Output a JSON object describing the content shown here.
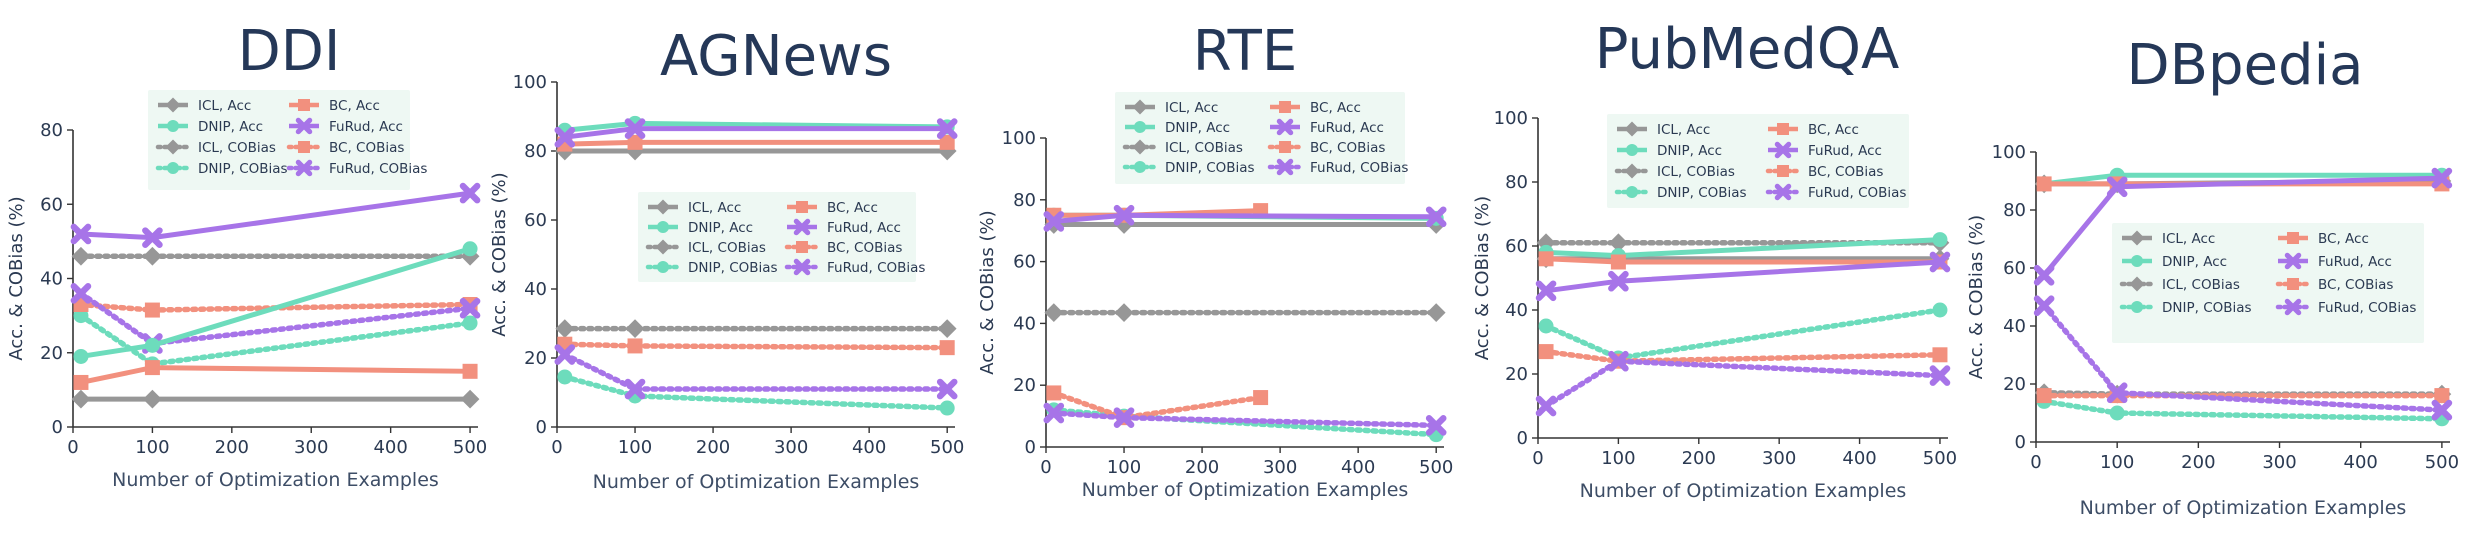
{
  "colors": {
    "icl": "#979797",
    "dnip": "#6ddcbc",
    "bc": "#f2907e",
    "furud": "#a774e8",
    "legend_bg": "#eef8f3",
    "title": "#253858"
  },
  "chart_data": [
    {
      "type": "line",
      "title": "DDI",
      "xlabel": "Number of Optimization Examples",
      "ylabel": "Acc. & COBias (%)",
      "xlim": [
        0,
        510
      ],
      "ylim": [
        0,
        80
      ],
      "xticks": [
        0,
        100,
        200,
        300,
        400,
        500
      ],
      "xtick_labels": [
        "0",
        "100",
        "200",
        "300",
        "400",
        "500"
      ],
      "yticks": [
        0,
        20,
        40,
        60,
        80
      ],
      "ytick_labels": [
        "0",
        "20",
        "40",
        "60",
        "80"
      ],
      "legend_position": "top-center",
      "legend": [
        "ICL, Acc",
        "BC, Acc",
        "DNIP, Acc",
        "FuRud, Acc",
        "ICL, COBias",
        "BC, COBias",
        "DNIP, COBias",
        "FuRud, COBias"
      ],
      "series": [
        {
          "name": "ICL, Acc",
          "color_key": "icl",
          "dash": false,
          "marker": "diamond",
          "x": [
            10,
            100,
            500
          ],
          "y": [
            7.5,
            7.5,
            7.5
          ]
        },
        {
          "name": "DNIP, Acc",
          "color_key": "dnip",
          "dash": false,
          "marker": "circle",
          "x": [
            10,
            100,
            500
          ],
          "y": [
            19,
            22,
            48
          ]
        },
        {
          "name": "BC, Acc",
          "color_key": "bc",
          "dash": false,
          "marker": "square",
          "x": [
            10,
            100,
            500
          ],
          "y": [
            12,
            16,
            15
          ]
        },
        {
          "name": "FuRud, Acc",
          "color_key": "furud",
          "dash": false,
          "marker": "x",
          "x": [
            10,
            100,
            500
          ],
          "y": [
            52,
            51,
            63
          ]
        },
        {
          "name": "ICL, COBias",
          "color_key": "icl",
          "dash": true,
          "marker": "diamond",
          "x": [
            10,
            100,
            500
          ],
          "y": [
            46,
            46,
            46
          ]
        },
        {
          "name": "DNIP, COBias",
          "color_key": "dnip",
          "dash": true,
          "marker": "circle",
          "x": [
            10,
            100,
            500
          ],
          "y": [
            30,
            17,
            28
          ]
        },
        {
          "name": "BC, COBias",
          "color_key": "bc",
          "dash": true,
          "marker": "square",
          "x": [
            10,
            100,
            500
          ],
          "y": [
            33,
            31.5,
            33
          ]
        },
        {
          "name": "FuRud, COBias",
          "color_key": "furud",
          "dash": true,
          "marker": "x",
          "x": [
            10,
            100,
            500
          ],
          "y": [
            36,
            22.5,
            32
          ]
        }
      ]
    },
    {
      "type": "line",
      "title": "AGNews",
      "xlabel": "Number of Optimization Examples",
      "ylabel": "Acc. & COBias (%)",
      "xlim": [
        0,
        510
      ],
      "ylim": [
        0,
        100
      ],
      "xticks": [
        0,
        100,
        200,
        300,
        400,
        500
      ],
      "xtick_labels": [
        "0",
        "100",
        "200",
        "300",
        "400",
        "500"
      ],
      "yticks": [
        0,
        20,
        40,
        60,
        80,
        100
      ],
      "ytick_labels": [
        "0",
        "20",
        "40",
        "60",
        "80",
        "100"
      ],
      "legend_position": "center",
      "legend": [
        "ICL, Acc",
        "BC, Acc",
        "DNIP, Acc",
        "FuRud, Acc",
        "ICL, COBias",
        "BC, COBias",
        "DNIP, COBias",
        "FuRud, COBias"
      ],
      "series": [
        {
          "name": "ICL, Acc",
          "color_key": "icl",
          "dash": false,
          "marker": "diamond",
          "x": [
            10,
            100,
            500
          ],
          "y": [
            80,
            80,
            80
          ]
        },
        {
          "name": "DNIP, Acc",
          "color_key": "dnip",
          "dash": false,
          "marker": "circle",
          "x": [
            10,
            100,
            500
          ],
          "y": [
            86,
            88,
            87
          ]
        },
        {
          "name": "BC, Acc",
          "color_key": "bc",
          "dash": false,
          "marker": "square",
          "x": [
            10,
            100,
            500
          ],
          "y": [
            82,
            82.5,
            82.5
          ]
        },
        {
          "name": "FuRud, Acc",
          "color_key": "furud",
          "dash": false,
          "marker": "x",
          "x": [
            10,
            100,
            500
          ],
          "y": [
            84,
            86.5,
            86.5
          ]
        },
        {
          "name": "ICL, COBias",
          "color_key": "icl",
          "dash": true,
          "marker": "diamond",
          "x": [
            10,
            100,
            500
          ],
          "y": [
            28.5,
            28.5,
            28.5
          ]
        },
        {
          "name": "DNIP, COBias",
          "color_key": "dnip",
          "dash": true,
          "marker": "circle",
          "x": [
            10,
            100,
            500
          ],
          "y": [
            14.5,
            9,
            5.5
          ]
        },
        {
          "name": "BC, COBias",
          "color_key": "bc",
          "dash": true,
          "marker": "square",
          "x": [
            10,
            100,
            500
          ],
          "y": [
            24,
            23.5,
            23
          ]
        },
        {
          "name": "FuRud, COBias",
          "color_key": "furud",
          "dash": true,
          "marker": "x",
          "x": [
            10,
            100,
            500
          ],
          "y": [
            21,
            11,
            11
          ]
        }
      ]
    },
    {
      "type": "line",
      "title": "RTE",
      "xlabel": "Number of Optimization Examples",
      "ylabel": "Acc. & COBias (%)",
      "xlim": [
        0,
        510
      ],
      "ylim": [
        0,
        100
      ],
      "xticks": [
        0,
        100,
        200,
        300,
        400,
        500
      ],
      "xtick_labels": [
        "0",
        "100",
        "200",
        "300",
        "400",
        "500"
      ],
      "yticks": [
        0,
        20,
        40,
        60,
        80,
        100
      ],
      "ytick_labels": [
        "0",
        "20",
        "40",
        "60",
        "80",
        "100"
      ],
      "legend_position": "top-center",
      "legend": [
        "ICL, Acc",
        "BC, Acc",
        "DNIP, Acc",
        "FuRud, Acc",
        "ICL, COBias",
        "BC, COBias",
        "DNIP, COBias",
        "FuRud, COBias"
      ],
      "series": [
        {
          "name": "ICL, Acc",
          "color_key": "icl",
          "dash": false,
          "marker": "diamond",
          "x": [
            10,
            100,
            500
          ],
          "y": [
            72,
            72,
            72
          ]
        },
        {
          "name": "DNIP, Acc",
          "color_key": "dnip",
          "dash": false,
          "marker": "circle",
          "x": [
            10,
            100,
            500
          ],
          "y": [
            75,
            75,
            74
          ]
        },
        {
          "name": "BC, Acc",
          "color_key": "bc",
          "dash": false,
          "marker": "square",
          "x": [
            10,
            100,
            275
          ],
          "y": [
            75,
            75,
            76.5
          ]
        },
        {
          "name": "FuRud, Acc",
          "color_key": "furud",
          "dash": false,
          "marker": "x",
          "x": [
            10,
            100,
            500
          ],
          "y": [
            73,
            75,
            74.5
          ]
        },
        {
          "name": "ICL, COBias",
          "color_key": "icl",
          "dash": true,
          "marker": "diamond",
          "x": [
            10,
            100,
            500
          ],
          "y": [
            43.5,
            43.5,
            43.5
          ]
        },
        {
          "name": "DNIP, COBias",
          "color_key": "dnip",
          "dash": true,
          "marker": "circle",
          "x": [
            10,
            100,
            500
          ],
          "y": [
            12,
            10,
            4
          ]
        },
        {
          "name": "BC, COBias",
          "color_key": "bc",
          "dash": true,
          "marker": "square",
          "x": [
            10,
            100,
            275
          ],
          "y": [
            17.5,
            9.5,
            16
          ]
        },
        {
          "name": "FuRud, COBias",
          "color_key": "furud",
          "dash": true,
          "marker": "x",
          "x": [
            10,
            100,
            500
          ],
          "y": [
            11,
            9.5,
            7
          ]
        }
      ]
    },
    {
      "type": "line",
      "title": "PubMedQA",
      "xlabel": "Number of Optimization Examples",
      "ylabel": "Acc. & COBias (%)",
      "xlim": [
        0,
        510
      ],
      "ylim": [
        0,
        100
      ],
      "xticks": [
        0,
        100,
        200,
        300,
        400,
        500
      ],
      "xtick_labels": [
        "0",
        "100",
        "200",
        "300",
        "400",
        "500"
      ],
      "yticks": [
        0,
        20,
        40,
        60,
        80,
        100
      ],
      "ytick_labels": [
        "0",
        "20",
        "40",
        "60",
        "80",
        "100"
      ],
      "legend_position": "top-center",
      "legend": [
        "ICL, Acc",
        "BC, Acc",
        "DNIP, Acc",
        "FuRud, Acc",
        "ICL, COBias",
        "BC, COBias",
        "DNIP, COBias",
        "FuRud, COBias"
      ],
      "series": [
        {
          "name": "ICL, Acc",
          "color_key": "icl",
          "dash": false,
          "marker": "diamond",
          "x": [
            10,
            100,
            500
          ],
          "y": [
            56,
            56,
            56
          ]
        },
        {
          "name": "DNIP, Acc",
          "color_key": "dnip",
          "dash": false,
          "marker": "circle",
          "x": [
            10,
            100,
            500
          ],
          "y": [
            58,
            57,
            62
          ]
        },
        {
          "name": "BC, Acc",
          "color_key": "bc",
          "dash": false,
          "marker": "square",
          "x": [
            10,
            100,
            500
          ],
          "y": [
            56,
            55,
            55
          ]
        },
        {
          "name": "FuRud, Acc",
          "color_key": "furud",
          "dash": false,
          "marker": "x",
          "x": [
            10,
            100,
            500
          ],
          "y": [
            46,
            49,
            55
          ]
        },
        {
          "name": "ICL, COBias",
          "color_key": "icl",
          "dash": true,
          "marker": "diamond",
          "x": [
            10,
            100,
            500
          ],
          "y": [
            61,
            61,
            61
          ]
        },
        {
          "name": "DNIP, COBias",
          "color_key": "dnip",
          "dash": true,
          "marker": "circle",
          "x": [
            10,
            100,
            500
          ],
          "y": [
            35,
            25,
            40
          ]
        },
        {
          "name": "BC, COBias",
          "color_key": "bc",
          "dash": true,
          "marker": "square",
          "x": [
            10,
            100,
            500
          ],
          "y": [
            27,
            24,
            26
          ]
        },
        {
          "name": "FuRud, COBias",
          "color_key": "furud",
          "dash": true,
          "marker": "x",
          "x": [
            10,
            100,
            500
          ],
          "y": [
            10,
            24,
            19.5
          ]
        }
      ]
    },
    {
      "type": "line",
      "title": "DBpedia",
      "xlabel": "Number of Optimization Examples",
      "ylabel": "Acc. & COBias (%)",
      "xlim": [
        0,
        510
      ],
      "ylim": [
        0,
        100
      ],
      "xticks": [
        0,
        100,
        200,
        300,
        400,
        500
      ],
      "xtick_labels": [
        "0",
        "100",
        "200",
        "300",
        "400",
        "500"
      ],
      "yticks": [
        0,
        20,
        40,
        60,
        80,
        100
      ],
      "ytick_labels": [
        "0",
        "20",
        "40",
        "60",
        "80",
        "100"
      ],
      "legend_position": "center",
      "legend": [
        "ICL, Acc",
        "BC, Acc",
        "DNIP, Acc",
        "FuRud, Acc",
        "ICL, COBias",
        "BC, COBias",
        "DNIP, COBias",
        "FuRud, COBias"
      ],
      "series": [
        {
          "name": "ICL, Acc",
          "color_key": "icl",
          "dash": false,
          "marker": "diamond",
          "x": [
            10,
            100,
            500
          ],
          "y": [
            89,
            89,
            90
          ]
        },
        {
          "name": "DNIP, Acc",
          "color_key": "dnip",
          "dash": false,
          "marker": "circle",
          "x": [
            10,
            100,
            500
          ],
          "y": [
            89,
            92,
            92
          ]
        },
        {
          "name": "BC, Acc",
          "color_key": "bc",
          "dash": false,
          "marker": "square",
          "x": [
            10,
            100,
            500
          ],
          "y": [
            89,
            89,
            89
          ]
        },
        {
          "name": "FuRud, Acc",
          "color_key": "furud",
          "dash": false,
          "marker": "x",
          "x": [
            10,
            100,
            500
          ],
          "y": [
            57.5,
            88,
            91
          ]
        },
        {
          "name": "ICL, COBias",
          "color_key": "icl",
          "dash": true,
          "marker": "diamond",
          "x": [
            10,
            100,
            500
          ],
          "y": [
            17,
            16.5,
            16.5
          ]
        },
        {
          "name": "DNIP, COBias",
          "color_key": "dnip",
          "dash": true,
          "marker": "circle",
          "x": [
            10,
            100,
            500
          ],
          "y": [
            14,
            10,
            8
          ]
        },
        {
          "name": "BC, COBias",
          "color_key": "bc",
          "dash": true,
          "marker": "square",
          "x": [
            10,
            100,
            500
          ],
          "y": [
            16,
            16,
            16
          ]
        },
        {
          "name": "FuRud, COBias",
          "color_key": "furud",
          "dash": true,
          "marker": "x",
          "x": [
            10,
            100,
            500
          ],
          "y": [
            47,
            17,
            11
          ]
        }
      ]
    }
  ]
}
